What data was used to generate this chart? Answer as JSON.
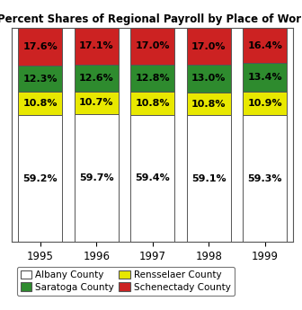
{
  "title": "Percent Shares of Regional Payroll by Place of Work",
  "years": [
    "1995",
    "1996",
    "1997",
    "1998",
    "1999"
  ],
  "albany": [
    59.2,
    59.7,
    59.4,
    59.1,
    59.3
  ],
  "rensselaer": [
    10.8,
    10.7,
    10.8,
    10.8,
    10.9
  ],
  "saratoga": [
    12.3,
    12.6,
    12.8,
    13.0,
    13.4
  ],
  "schenectady": [
    17.6,
    17.1,
    17.0,
    17.0,
    16.4
  ],
  "albany_labels": [
    "59.2%",
    "59.7%",
    "59.4%",
    "59.1%",
    "59.3%"
  ],
  "rensselaer_labels": [
    "10.8%",
    "10.7%",
    "10.8%",
    "10.8%",
    "10.9%"
  ],
  "saratoga_labels": [
    "12.3%",
    "12.6%",
    "12.8%",
    "13.0%",
    "13.4%"
  ],
  "schenectady_labels": [
    "17.6%",
    "17.1%",
    "17.0%",
    "17.0%",
    "16.4%"
  ],
  "color_albany": "#ffffff",
  "color_rensselaer": "#e8e800",
  "color_saratoga": "#2e8b2e",
  "color_schenectady": "#cc2222",
  "bar_edge_color": "#555555",
  "bar_width": 0.78,
  "ylim": [
    0,
    100
  ],
  "legend_labels": [
    "Albany County",
    "Rensselaer County",
    "Saratoga County",
    "Schenectady County"
  ],
  "legend_colors": [
    "#ffffff",
    "#e8e800",
    "#2e8b2e",
    "#cc2222"
  ],
  "title_fontsize": 8.5,
  "label_fontsize": 8.0,
  "tick_fontsize": 8.5,
  "legend_fontsize": 7.5
}
